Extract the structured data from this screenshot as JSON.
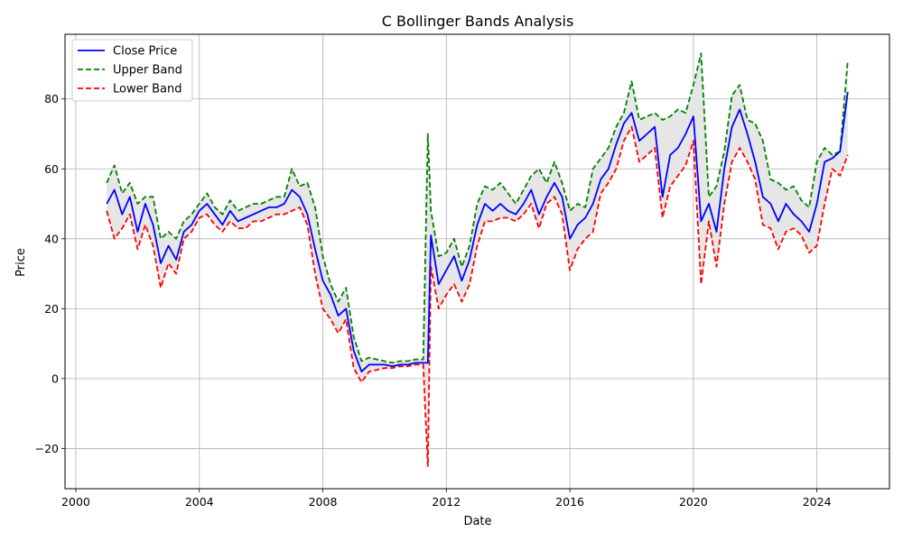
{
  "chart_data": {
    "type": "line",
    "title": "C Bollinger Bands Analysis",
    "xlabel": "Date",
    "ylabel": "Price",
    "xlim": [
      1999.65,
      2026.35
    ],
    "ylim": [
      -31.5,
      98.5
    ],
    "x_ticks": [
      2000,
      2004,
      2008,
      2012,
      2016,
      2020,
      2024
    ],
    "y_ticks": [
      -20,
      0,
      20,
      40,
      60,
      80
    ],
    "grid": true,
    "legend_position": "upper left",
    "band_fill_color": "#e6e6e6",
    "series": [
      {
        "name": "Close Price",
        "color": "#0000ff",
        "style": "solid",
        "x": [
          2001.0,
          2001.25,
          2001.5,
          2001.75,
          2002.0,
          2002.25,
          2002.5,
          2002.75,
          2003.0,
          2003.25,
          2003.5,
          2003.75,
          2004.0,
          2004.25,
          2004.5,
          2004.75,
          2005.0,
          2005.25,
          2005.5,
          2005.75,
          2006.0,
          2006.25,
          2006.5,
          2006.75,
          2007.0,
          2007.25,
          2007.5,
          2007.75,
          2008.0,
          2008.25,
          2008.5,
          2008.75,
          2009.0,
          2009.25,
          2009.5,
          2009.75,
          2010.0,
          2010.25,
          2010.5,
          2010.75,
          2011.0,
          2011.25,
          2011.4,
          2011.5,
          2011.75,
          2012.0,
          2012.25,
          2012.5,
          2012.75,
          2013.0,
          2013.25,
          2013.5,
          2013.75,
          2014.0,
          2014.25,
          2014.5,
          2014.75,
          2015.0,
          2015.25,
          2015.5,
          2015.75,
          2016.0,
          2016.25,
          2016.5,
          2016.75,
          2017.0,
          2017.25,
          2017.5,
          2017.75,
          2018.0,
          2018.25,
          2018.5,
          2018.75,
          2019.0,
          2019.25,
          2019.5,
          2019.75,
          2020.0,
          2020.25,
          2020.5,
          2020.75,
          2021.0,
          2021.25,
          2021.5,
          2021.75,
          2022.0,
          2022.25,
          2022.5,
          2022.75,
          2023.0,
          2023.25,
          2023.5,
          2023.75,
          2024.0,
          2024.25,
          2024.5,
          2024.75,
          2025.0
        ],
        "y": [
          50,
          54,
          47,
          52,
          42,
          50,
          44,
          33,
          38,
          34,
          42,
          44,
          48,
          50,
          47,
          44,
          48,
          45,
          46,
          47,
          48,
          49,
          49,
          50,
          54,
          52,
          47,
          37,
          28,
          24,
          18,
          20,
          8,
          2,
          4,
          4,
          4,
          3.5,
          4,
          4,
          4.5,
          4.5,
          4.5,
          41,
          27,
          31,
          35,
          28,
          34,
          44,
          50,
          48,
          50,
          48,
          47,
          50,
          54,
          47,
          52,
          56,
          52,
          40,
          44,
          46,
          50,
          57,
          60,
          67,
          73,
          76,
          68,
          70,
          72,
          52,
          64,
          66,
          70,
          75,
          45,
          50,
          42,
          60,
          72,
          77,
          70,
          62,
          52,
          50,
          45,
          50,
          47,
          45,
          42,
          50,
          62,
          63,
          65,
          82
        ]
      },
      {
        "name": "Upper Band",
        "color": "#008000",
        "style": "dashed",
        "x": [
          2001.0,
          2001.25,
          2001.5,
          2001.75,
          2002.0,
          2002.25,
          2002.5,
          2002.75,
          2003.0,
          2003.25,
          2003.5,
          2003.75,
          2004.0,
          2004.25,
          2004.5,
          2004.75,
          2005.0,
          2005.25,
          2005.5,
          2005.75,
          2006.0,
          2006.25,
          2006.5,
          2006.75,
          2007.0,
          2007.25,
          2007.5,
          2007.75,
          2008.0,
          2008.25,
          2008.5,
          2008.75,
          2009.0,
          2009.25,
          2009.5,
          2009.75,
          2010.0,
          2010.25,
          2010.5,
          2010.75,
          2011.0,
          2011.25,
          2011.4,
          2011.5,
          2011.75,
          2012.0,
          2012.25,
          2012.5,
          2012.75,
          2013.0,
          2013.25,
          2013.5,
          2013.75,
          2014.0,
          2014.25,
          2014.5,
          2014.75,
          2015.0,
          2015.25,
          2015.5,
          2015.75,
          2016.0,
          2016.25,
          2016.5,
          2016.75,
          2017.0,
          2017.25,
          2017.5,
          2017.75,
          2018.0,
          2018.25,
          2018.5,
          2018.75,
          2019.0,
          2019.25,
          2019.5,
          2019.75,
          2020.0,
          2020.25,
          2020.5,
          2020.75,
          2021.0,
          2021.25,
          2021.5,
          2021.75,
          2022.0,
          2022.25,
          2022.5,
          2022.75,
          2023.0,
          2023.25,
          2023.5,
          2023.75,
          2024.0,
          2024.25,
          2024.5,
          2024.75,
          2025.0
        ],
        "y": [
          56,
          61,
          53,
          56,
          50,
          52,
          52,
          40,
          42,
          40,
          45,
          47,
          50,
          53,
          49,
          47,
          51,
          48,
          49,
          50,
          50,
          51,
          52,
          52,
          60,
          55,
          56,
          49,
          35,
          27,
          22,
          26,
          12,
          5,
          6,
          5.5,
          5,
          4.5,
          5,
          5,
          5.5,
          5.5,
          70,
          48,
          35,
          36,
          40,
          32,
          38,
          50,
          55,
          54,
          56,
          53,
          50,
          54,
          58,
          60,
          56,
          62,
          56,
          48,
          50,
          49,
          60,
          63,
          66,
          72,
          76,
          85,
          74,
          75,
          76,
          74,
          75,
          77,
          76,
          84,
          93,
          52,
          55,
          65,
          81,
          84,
          74,
          73,
          68,
          57,
          56,
          54,
          55,
          51,
          49,
          62,
          66,
          64,
          65,
          91
        ]
      },
      {
        "name": "Lower Band",
        "color": "#ff0000",
        "style": "dashed",
        "x": [
          2001.0,
          2001.25,
          2001.5,
          2001.75,
          2002.0,
          2002.25,
          2002.5,
          2002.75,
          2003.0,
          2003.25,
          2003.5,
          2003.75,
          2004.0,
          2004.25,
          2004.5,
          2004.75,
          2005.0,
          2005.25,
          2005.5,
          2005.75,
          2006.0,
          2006.25,
          2006.5,
          2006.75,
          2007.0,
          2007.25,
          2007.5,
          2007.75,
          2008.0,
          2008.25,
          2008.5,
          2008.75,
          2009.0,
          2009.25,
          2009.5,
          2009.75,
          2010.0,
          2010.25,
          2010.5,
          2010.75,
          2011.0,
          2011.25,
          2011.4,
          2011.5,
          2011.75,
          2012.0,
          2012.25,
          2012.5,
          2012.75,
          2013.0,
          2013.25,
          2013.5,
          2013.75,
          2014.0,
          2014.25,
          2014.5,
          2014.75,
          2015.0,
          2015.25,
          2015.5,
          2015.75,
          2016.0,
          2016.25,
          2016.5,
          2016.75,
          2017.0,
          2017.25,
          2017.5,
          2017.75,
          2018.0,
          2018.25,
          2018.5,
          2018.75,
          2019.0,
          2019.25,
          2019.5,
          2019.75,
          2020.0,
          2020.25,
          2020.5,
          2020.75,
          2021.0,
          2021.25,
          2021.5,
          2021.75,
          2022.0,
          2022.25,
          2022.5,
          2022.75,
          2023.0,
          2023.25,
          2023.5,
          2023.75,
          2024.0,
          2024.25,
          2024.5,
          2024.75,
          2025.0
        ],
        "y": [
          48,
          40,
          43,
          47,
          37,
          44,
          38,
          26,
          33,
          30,
          40,
          42,
          46,
          47,
          44,
          42,
          45,
          43,
          43,
          45,
          45,
          46,
          47,
          47,
          48,
          49,
          44,
          30,
          20,
          17,
          13,
          17,
          3,
          -1,
          2,
          2.5,
          3,
          3,
          3.5,
          3.5,
          4,
          4,
          -25,
          32,
          20,
          24,
          27,
          22,
          27,
          38,
          45,
          45,
          46,
          46,
          45,
          47,
          50,
          43,
          50,
          52,
          47,
          31,
          37,
          40,
          42,
          53,
          56,
          60,
          68,
          72,
          62,
          64,
          66,
          46,
          55,
          58,
          61,
          68,
          27,
          45,
          32,
          50,
          62,
          66,
          62,
          57,
          44,
          43,
          37,
          42,
          43,
          41,
          36,
          38,
          50,
          60,
          58,
          64
        ]
      }
    ]
  }
}
